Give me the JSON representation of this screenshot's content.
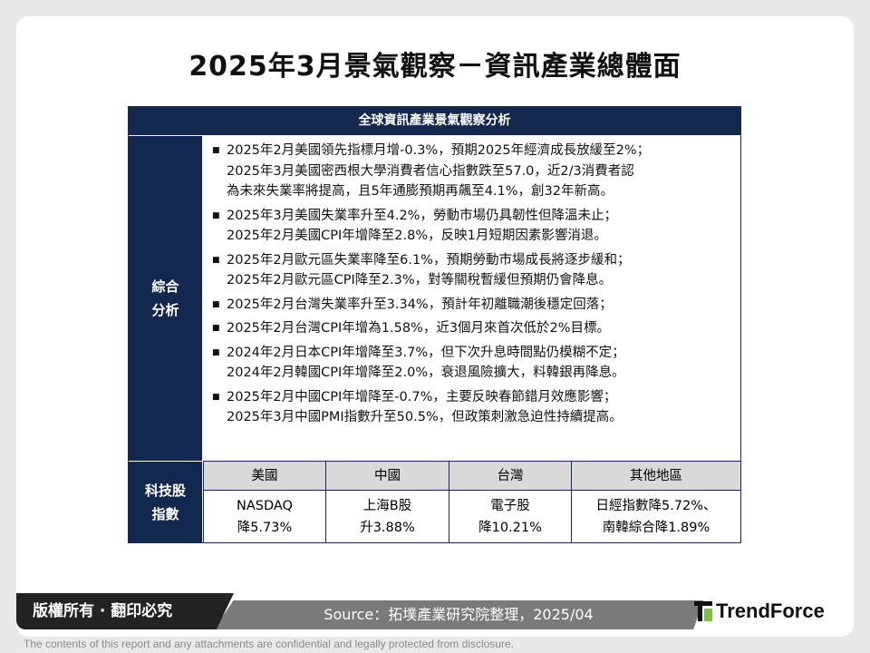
{
  "title": "2025年3月景氣觀察－資訊產業總體面",
  "table": {
    "header": "全球資訊產業景氣觀察分析",
    "analysis_label": "綜合\n分析",
    "analysis_label_lines": [
      "綜合",
      "分析"
    ],
    "bullets": [
      [
        "2025年2月美國領先指標月增-0.3%，預期2025年經濟成長放緩至2%；",
        "2025年3月美國密西根大學消費者信心指數跌至57.0，近2/3消費者認",
        "為未來失業率將提高，且5年通膨預期再飆至4.1%，創32年新高。"
      ],
      [
        "2025年3月美國失業率升至4.2%，勞動市場仍具韌性但降溫未止；",
        "2025年2月美國CPI年增降至2.8%，反映1月短期因素影響消退。"
      ],
      [
        "2025年2月歐元區失業率降至6.1%，預期勞動市場成長將逐步緩和；",
        "2025年2月歐元區CPI降至2.3%，對等關稅暫緩但預期仍會降息。"
      ],
      [
        "2025年2月台灣失業率升至3.34%，預計年初離職潮後穩定回落；"
      ],
      [
        "2025年2月台灣CPI年增為1.58%，近3個月來首次低於2%目標。"
      ],
      [
        "2024年2月日本CPI年增降至3.7%，但下次升息時間點仍模糊不定；",
        "2024年2月韓國CPI年增降至2.0%，衰退風險擴大，料韓銀再降息。"
      ],
      [
        "2025年2月中國CPI年增降至-0.7%，主要反映春節錯月效應影響；",
        "2025年3月中國PMI指數升至50.5%，但政策刺激急迫性持續提高。"
      ]
    ],
    "stock_label_lines": [
      "科技股",
      "指數"
    ],
    "regions": [
      "美國",
      "中國",
      "台灣",
      "其他地區"
    ],
    "values": [
      [
        "NASDAQ",
        "降5.73%"
      ],
      [
        "上海B股",
        "升3.88%"
      ],
      [
        "電子股",
        "降10.21%"
      ],
      [
        "日經指數降5.72%、",
        "南韓綜合降1.89%"
      ]
    ]
  },
  "footer": {
    "copyright": "版權所有 · 翻印必究",
    "source": "Source：拓墣產業研究院整理，2025/04",
    "brand": "TrendForce",
    "brand_colors": {
      "dark": "#111111",
      "accent": "#7ac143"
    }
  },
  "disclaimer": "The contents of this report and any attachments are confidential and legally protected from disclosure."
}
